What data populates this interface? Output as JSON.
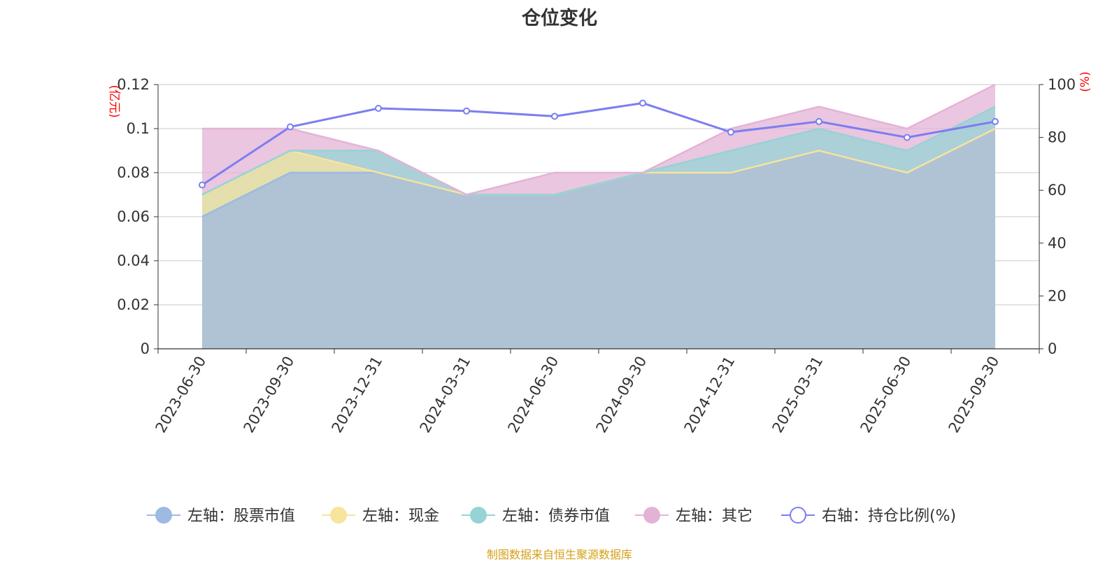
{
  "title": "仓位变化",
  "footer": "制图数据来自恒生聚源数据库",
  "chart_data": {
    "type": "area",
    "categories": [
      "2023-06-30",
      "2023-09-30",
      "2023-12-31",
      "2024-03-31",
      "2024-06-30",
      "2024-09-30",
      "2024-12-31",
      "2025-03-31",
      "2025-06-30",
      "2025-09-30"
    ],
    "left_axis": {
      "unit": "(亿元)",
      "min": 0,
      "max": 0.12,
      "ticks": [
        "0",
        "0.02",
        "0.04",
        "0.06",
        "0.08",
        "0.1",
        "0.12"
      ]
    },
    "right_axis": {
      "unit": "(%)",
      "min": 0,
      "max": 100,
      "ticks": [
        "0",
        "20",
        "40",
        "60",
        "80",
        "100"
      ]
    },
    "stacked_series": [
      {
        "name": "左轴：股票市值",
        "color": "#9eb9e2",
        "values": [
          0.06,
          0.08,
          0.08,
          0.07,
          0.07,
          0.08,
          0.08,
          0.09,
          0.08,
          0.1
        ]
      },
      {
        "name": "左轴：现金",
        "color": "#f7e49d",
        "values": [
          0.07,
          0.09,
          0.08,
          0.07,
          0.07,
          0.08,
          0.08,
          0.09,
          0.08,
          0.1
        ]
      },
      {
        "name": "左轴：债券市值",
        "color": "#95d3d5",
        "values": [
          0.07,
          0.09,
          0.09,
          0.07,
          0.07,
          0.08,
          0.09,
          0.1,
          0.09,
          0.11
        ]
      },
      {
        "name": "左轴：其它",
        "color": "#e3b3d6",
        "values": [
          0.1,
          0.1,
          0.09,
          0.07,
          0.08,
          0.08,
          0.1,
          0.11,
          0.1,
          0.12
        ]
      }
    ],
    "line_series": {
      "name": "右轴：持仓比例(%)",
      "color": "#7b7ef0",
      "values": [
        62,
        84,
        91,
        90,
        88,
        93,
        82,
        86,
        80,
        86
      ]
    }
  }
}
